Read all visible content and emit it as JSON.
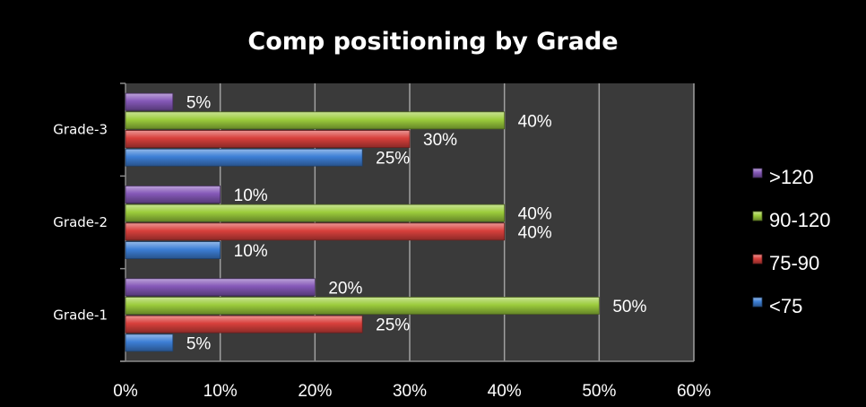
{
  "chart_data": {
    "type": "bar",
    "orientation": "horizontal",
    "title": "Comp positioning by Grade",
    "xlabel": "",
    "ylabel": "",
    "categories": [
      "Grade-1",
      "Grade-2",
      "Grade-3"
    ],
    "xlim": [
      0,
      60
    ],
    "xticks": [
      "0%",
      "10%",
      "20%",
      "30%",
      "40%",
      "50%",
      "60%"
    ],
    "grid": true,
    "legend_position": "right",
    "value_suffix": "%",
    "series": [
      {
        "name": "<75",
        "color": "#3d7fd6",
        "values": [
          5,
          10,
          25
        ]
      },
      {
        "name": "75-90",
        "color": "#d8403c",
        "values": [
          25,
          40,
          30
        ]
      },
      {
        "name": "90-120",
        "color": "#9ccc3c",
        "values": [
          50,
          40,
          40
        ]
      },
      {
        "name": ">120",
        "color": "#8558b8",
        "values": [
          20,
          10,
          5
        ]
      }
    ],
    "legend_order": [
      ">120",
      "90-120",
      "75-90",
      "<75"
    ],
    "plot_background": "#3a3a3a",
    "gridline_color": "#a0a0a0"
  }
}
